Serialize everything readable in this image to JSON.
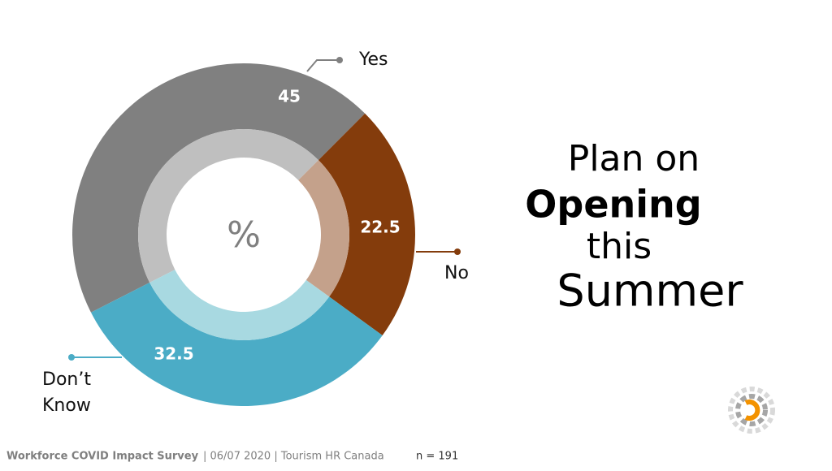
{
  "chart_data": {
    "type": "donut",
    "center_label": "%",
    "categories": [
      "Yes",
      "No",
      "Don’t Know"
    ],
    "values": [
      45,
      22.5,
      32.5
    ],
    "colors": [
      "#808080",
      "#843c0c",
      "#4bacc6"
    ],
    "inner_colors": [
      "#bfbfbf",
      "#c4a18b",
      "#a8d9e1"
    ],
    "title_lines": [
      "Plan on",
      "Opening",
      "this",
      "Summer"
    ]
  },
  "footer": {
    "source": "Workforce COVID Impact Survey",
    "details": "| 06/07 2020 | Tourism HR Canada",
    "n": "n = 191"
  }
}
